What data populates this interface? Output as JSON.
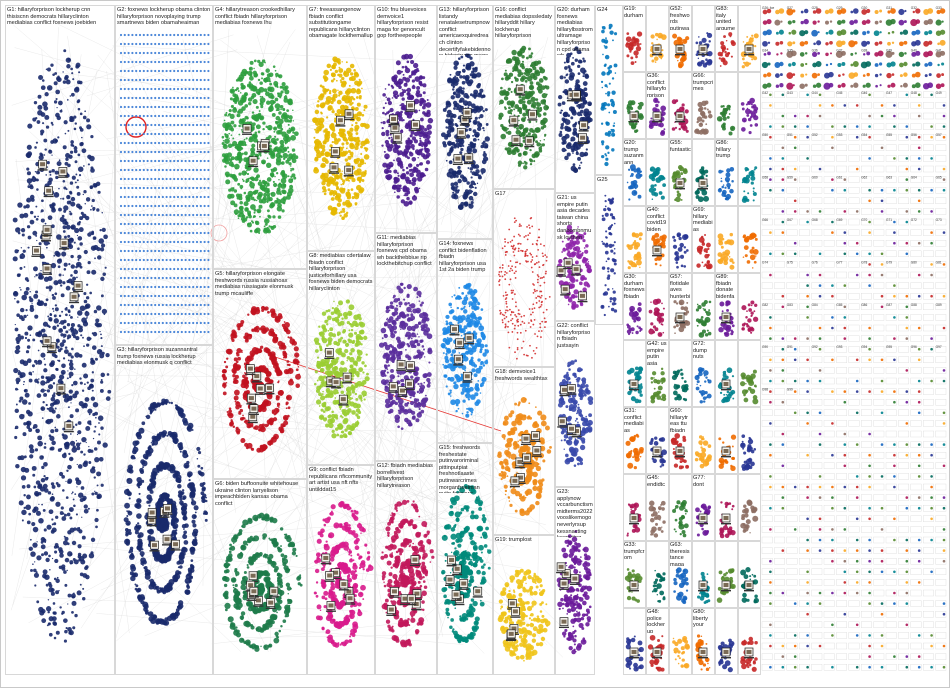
{
  "graph_title": "",
  "groups": [
    {
      "id": "G1",
      "label": "G1: hillaryforprison lockherup cnn thisiscnn democrats hillaryclinton mediabias conflict foxnews joebiden",
      "color": "#1a2a6c"
    },
    {
      "id": "G2",
      "label": "G2: foxnews lockherup obama clinton hillaryforprison novoplaying trump smartnews biden obamaheaiman",
      "color": "#3a7bd5"
    },
    {
      "id": "G3",
      "label": "G3: hillaryforprison suzannantral trump foxnews russia lockherup mediabias elonmusk q conflict",
      "color": "#1a2a6c"
    },
    {
      "id": "G4",
      "label": "G4: hillarytreason crookedhillary conflict fbiadn hillaryforprison mediabias foxnews lhu",
      "color": "#2e9e3e"
    },
    {
      "id": "G5",
      "label": "G5: hillaryforprison elongate freshwords russia russiahoax mediabias russiagate elonmusk trump mcauliffe",
      "color": "#c1121f"
    },
    {
      "id": "G6",
      "label": "G6: biden buffoonuite whitehouse ukraine clinton larryelison impeachbiden kansas obama conflict",
      "color": "#1e7b4a"
    },
    {
      "id": "G7",
      "label": "G7: freeassangenow fbiadn conflict substitutiongame republicans hillaryclinton obamagate lockthemallup",
      "color": "#e6b800"
    },
    {
      "id": "G8",
      "label": "G8: mediabias cdertalaw fbiadn conflict hillaryforprison justiceforhillary usa foxnews biden democrats hillaryclinton",
      "color": "#9acd32"
    },
    {
      "id": "G9",
      "label": "G9: conflict fbiadn republicans nficommunity art artist usa nft nfts untilddat15",
      "color": "#d81b8c"
    },
    {
      "id": "G10",
      "label": "G10: fnu bluevoices demvoice1 hillaryforprison resist maga for genoncult gop fortheepeople",
      "color": "#4b1d8f"
    },
    {
      "id": "G11",
      "label": "G11: mediabias hillaryforprison foxnews cpd obama wh backthebbiue rip lockthebitchup conflict",
      "color": "#5a2d9c"
    },
    {
      "id": "G12",
      "label": "G12: fbiadn mediabias borrellivest hillaryforprison hillarytreason",
      "color": "#c2185b"
    },
    {
      "id": "G13",
      "label": "G13: hillaryforprison listandy renatalesetrumpnow conflict americaexquiredreach clinton decertifyfakebidennow bidentrump mage",
      "color": "#1a2a6c"
    },
    {
      "id": "G14",
      "label": "G14: foxnews conflict bidenflation fbiadn hillaryforprison usa 1st 2a biden trump",
      "color": "#1e88e5"
    },
    {
      "id": "G15",
      "label": "G15: freshwords freshestate putinvaroriminal pittinputpiat freshnotlaaste putinwarcrimes morganfreelman putin foxnews treason",
      "color": "#00897b"
    },
    {
      "id": "G16",
      "label": "G16: conflict mediabias dopssledaty hillaryddit hillary lockherup hillaryforprison",
      "color": "#2e7d32"
    },
    {
      "id": "G17",
      "label": "G17",
      "color": "#d32f2f"
    },
    {
      "id": "G18",
      "label": "G18: demvoice1 freshwords wealthtax",
      "color": "#ef8c1a"
    },
    {
      "id": "G19",
      "label": "G19: trumplost",
      "color": "#f0c419"
    },
    {
      "id": "G20",
      "label": "G20: durham foxnews mediabias hillarylbsstrom ultramage hillaryforprison cpd obama wh backthebbiue rip",
      "color": "#1a2a6c"
    },
    {
      "id": "G21",
      "label": "G21: us empire putin asia decades taiwan china shorts danbombnmusk lovthen",
      "color": "#8e24aa"
    },
    {
      "id": "G22",
      "label": "G22: conflict hillaryforprison fbiadn justsayin",
      "color": "#3949ab"
    },
    {
      "id": "G23",
      "label": "G23: applynow vccarbunctism midterms2022 vooslikemogo neverlyrsup kessnacting keeputing",
      "color": "#6a1b9a"
    },
    {
      "id": "G24",
      "label": "G24",
      "color": "#0277bd"
    },
    {
      "id": "G25",
      "label": "G25",
      "color": "#283593"
    }
  ],
  "right_group_labels": [
    "G26: foe",
    "G27",
    "G28",
    "G29",
    "G30",
    "G31",
    "G32",
    "G33",
    "G34",
    "G35",
    "G36",
    "G37",
    "G38",
    "G39",
    "G40",
    "G41",
    "G42",
    "G43",
    "G44",
    "G45",
    "G46",
    "G47",
    "G48",
    "G49",
    "G50",
    "G51",
    "G52",
    "G53",
    "G54",
    "G55",
    "G56",
    "G57",
    "G58",
    "G59",
    "G60",
    "G61",
    "G62",
    "G63",
    "G64",
    "G65",
    "G66",
    "G67",
    "G68",
    "G69",
    "G70",
    "G71",
    "G72",
    "G73",
    "G74",
    "G75",
    "G76",
    "G77",
    "G78",
    "G79",
    "G80",
    "G81",
    "G82",
    "G83",
    "G84",
    "G85",
    "G86",
    "G87",
    "G88",
    "G89",
    "G90",
    "G91",
    "G92",
    "G93",
    "G94",
    "G95",
    "G96",
    "G97",
    "G98",
    "G99"
  ],
  "small_cluster_labels": [
    "G19: durham",
    "G20: trump suzanmann clinton hillaryforprison obama fbia",
    "G30: durham foxnews fbiadn",
    "G31: conflict mediabias fbiadn",
    "G33: trumpfcrom",
    "G36: conflict hillaryforprison lockherup trumplost",
    "G40: conflict covid19 biden fbiadn",
    "G42: us empire putin asia decades",
    "G45: endidtc",
    "G48: police lockherup",
    "G52: freshwords putinwarcrimes",
    "G55: funtastic",
    "G57: flotidaleaves hunterbidentlop shoes",
    "G60: hillarytreas ttu fbiadn",
    "G63: theresistance maga freshworks",
    "G66: trumpcrimes",
    "G69: hillary mediabias",
    "G72: dump nuts",
    "G77: dont",
    "G80: liberty your",
    "G83: italy united arguments primary",
    "G86: hillary trump",
    "G89: fbiadn donate bidenfamily"
  ],
  "colors": {
    "background": "#ffffff",
    "edge": "#c9c9c9",
    "panel_border": "#d8d8d8",
    "highlight_ring": "#e02424",
    "cross_edge": "#e53935"
  }
}
